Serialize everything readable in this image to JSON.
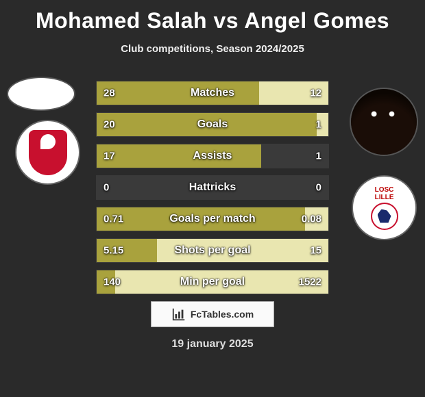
{
  "title": "Mohamed Salah vs Angel Gomes",
  "subtitle": "Club competitions, Season 2024/2025",
  "date": "19 january 2025",
  "footer_brand": "FcTables.com",
  "player_left": {
    "name": "Mohamed Salah",
    "club": "Liverpool"
  },
  "player_right": {
    "name": "Angel Gomes",
    "club": "Lille"
  },
  "colors": {
    "olive": "#a9a23d",
    "pale": "#e9e6b0",
    "grey": "#3a3a3a",
    "bg": "#2a2a2a",
    "text": "#ffffff"
  },
  "rows": [
    {
      "label": "Matches",
      "left": "28",
      "right": "12",
      "left_pct": 70,
      "right_pct": 30,
      "fill_full": true
    },
    {
      "label": "Goals",
      "left": "20",
      "right": "1",
      "left_pct": 95,
      "right_pct": 5,
      "fill_full": true
    },
    {
      "label": "Assists",
      "left": "17",
      "right": "1",
      "left_pct": 71,
      "right_pct": 0,
      "fill_full": false
    },
    {
      "label": "Hattricks",
      "left": "0",
      "right": "0",
      "left_pct": 0,
      "right_pct": 0,
      "fill_full": false
    },
    {
      "label": "Goals per match",
      "left": "0.71",
      "right": "0.08",
      "left_pct": 90,
      "right_pct": 10,
      "fill_full": true
    },
    {
      "label": "Shots per goal",
      "left": "5.15",
      "right": "15",
      "left_pct": 26,
      "right_pct": 74,
      "fill_full": true
    },
    {
      "label": "Min per goal",
      "left": "140",
      "right": "1522",
      "left_pct": 8,
      "right_pct": 92,
      "fill_full": true
    }
  ]
}
